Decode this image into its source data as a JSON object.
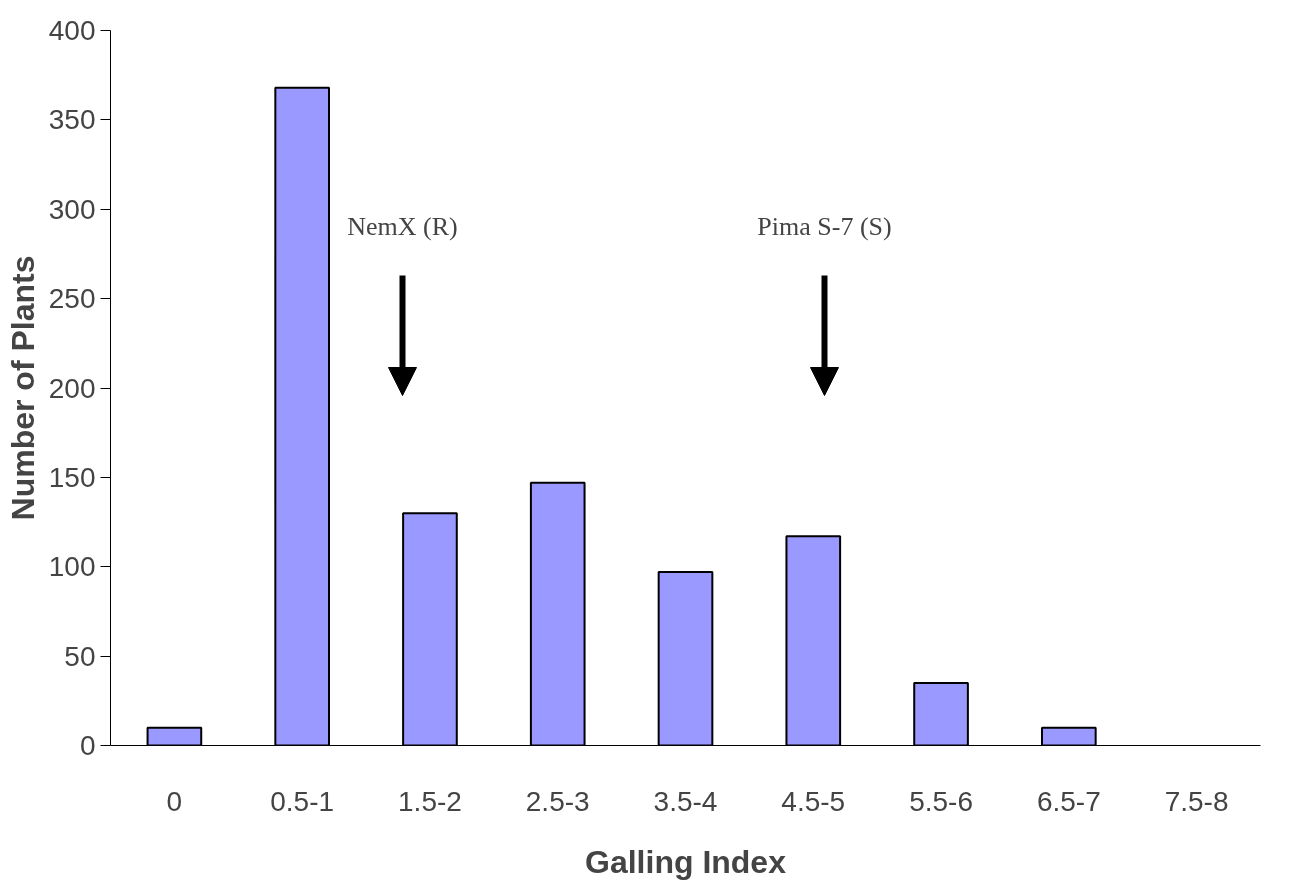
{
  "chart_data": {
    "type": "bar",
    "xlabel": "Galling Index",
    "ylabel": "Number of Plants",
    "categories": [
      "0",
      "0.5-1",
      "1.5-2",
      "2.5-3",
      "3.5-4",
      "4.5-5",
      "5.5-6",
      "6.5-7",
      "7.5-8"
    ],
    "values": [
      10,
      368,
      130,
      147,
      97,
      117,
      35,
      10,
      null
    ],
    "color": "#9999ff",
    "ylim": [
      0,
      400
    ],
    "yticks": [
      0,
      50,
      100,
      150,
      200,
      250,
      300,
      350,
      400
    ],
    "grid": false,
    "annotations": [
      "NemX (R)",
      "Pima S-7 (S)"
    ]
  }
}
